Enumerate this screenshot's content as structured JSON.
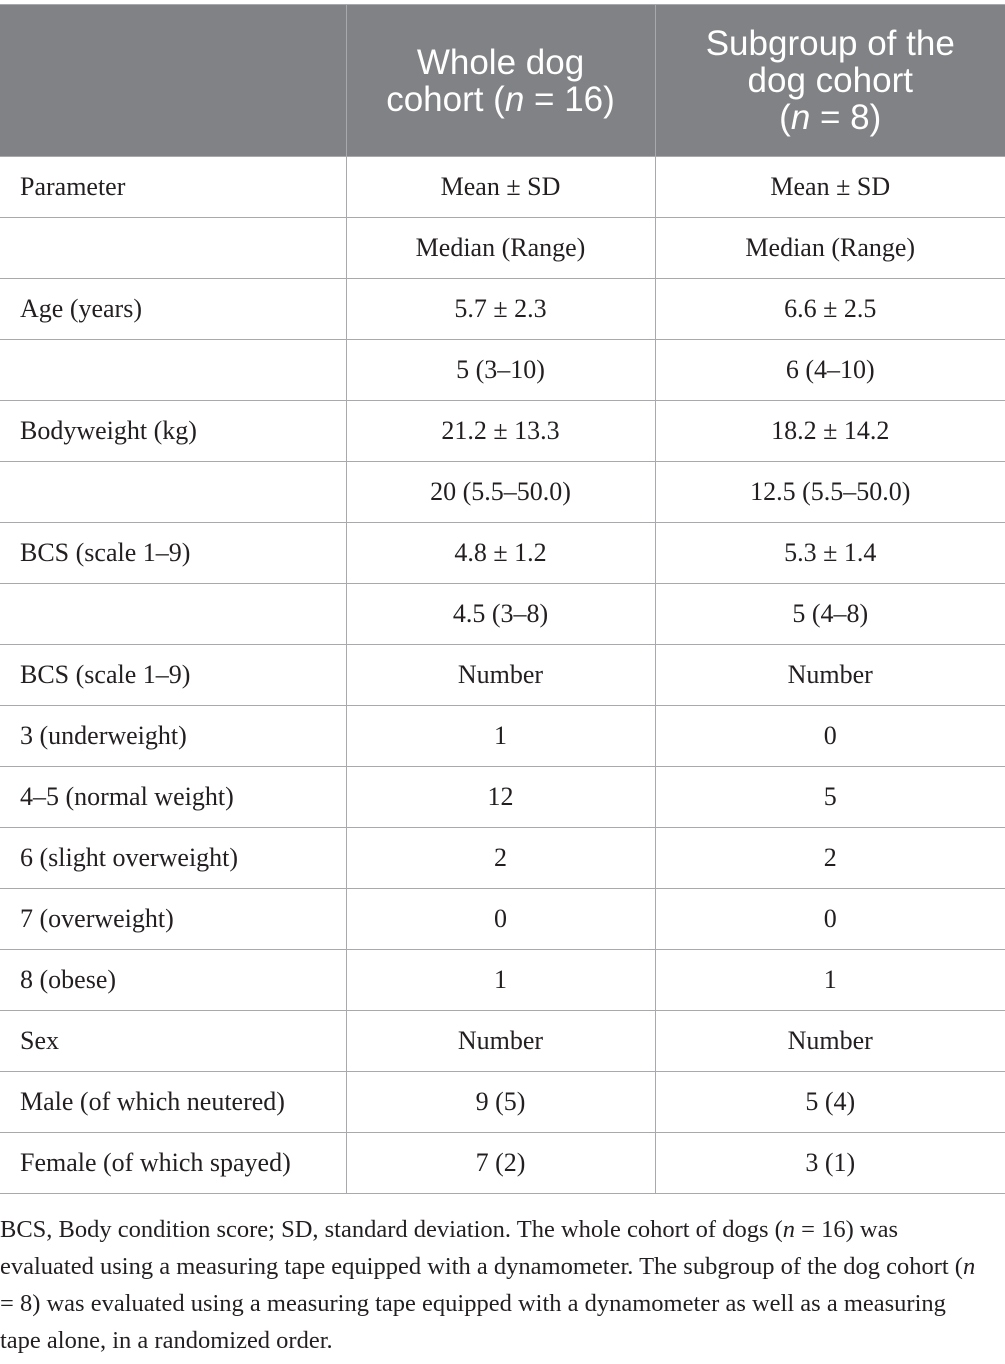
{
  "header": {
    "col1": "",
    "col2_line1": "Whole dog",
    "col2_line2_pre": "cohort (",
    "col2_n": "n",
    "col2_line2_post": " = 16)",
    "col3_line1": "Subgroup of the",
    "col3_line2": "dog cohort",
    "col3_line3_pre": "(",
    "col3_n": "n",
    "col3_line3_post": " = 8)"
  },
  "rows": [
    {
      "label": "Parameter",
      "whole": "Mean ± SD",
      "sub": "Mean ± SD"
    },
    {
      "label": "",
      "whole": "Median (Range)",
      "sub": "Median (Range)"
    },
    {
      "label": "Age (years)",
      "whole": "5.7 ± 2.3",
      "sub": "6.6 ± 2.5"
    },
    {
      "label": "",
      "whole": "5 (3–10)",
      "sub": "6 (4–10)"
    },
    {
      "label": "Bodyweight (kg)",
      "whole": "21.2 ± 13.3",
      "sub": "18.2 ± 14.2"
    },
    {
      "label": "",
      "whole": "20 (5.5–50.0)",
      "sub": "12.5 (5.5–50.0)"
    },
    {
      "label": "BCS (scale 1–9)",
      "whole": "4.8 ± 1.2",
      "sub": "5.3 ± 1.4"
    },
    {
      "label": "",
      "whole": "4.5 (3–8)",
      "sub": "5 (4–8)"
    },
    {
      "label": "BCS (scale 1–9)",
      "whole": "Number",
      "sub": "Number"
    },
    {
      "label": "3 (underweight)",
      "whole": "1",
      "sub": "0"
    },
    {
      "label": "4–5 (normal weight)",
      "whole": "12",
      "sub": "5"
    },
    {
      "label": "6 (slight overweight)",
      "whole": "2",
      "sub": "2"
    },
    {
      "label": "7 (overweight)",
      "whole": "0",
      "sub": "0"
    },
    {
      "label": "8 (obese)",
      "whole": "1",
      "sub": "1"
    },
    {
      "label": "Sex",
      "whole": "Number",
      "sub": "Number"
    },
    {
      "label": "Male (of which neutered)",
      "whole": "9 (5)",
      "sub": "5 (4)"
    },
    {
      "label": "Female (of which spayed)",
      "whole": "7 (2)",
      "sub": "3 (1)"
    }
  ],
  "footnote": {
    "part1": "BCS, Body condition score; SD, standard deviation. The whole cohort of dogs (",
    "n1": "n",
    "part2": " = 16) was evaluated using a measuring tape equipped with a dynamometer. The subgroup of the dog cohort (",
    "n2": "n",
    "part3": " = 8) was evaluated using a measuring tape equipped with a dynamometer as well as a measuring tape alone, in a randomized order."
  },
  "colors": {
    "header_bg": "#808285",
    "border": "#a7a9ac",
    "text": "#231f20"
  }
}
